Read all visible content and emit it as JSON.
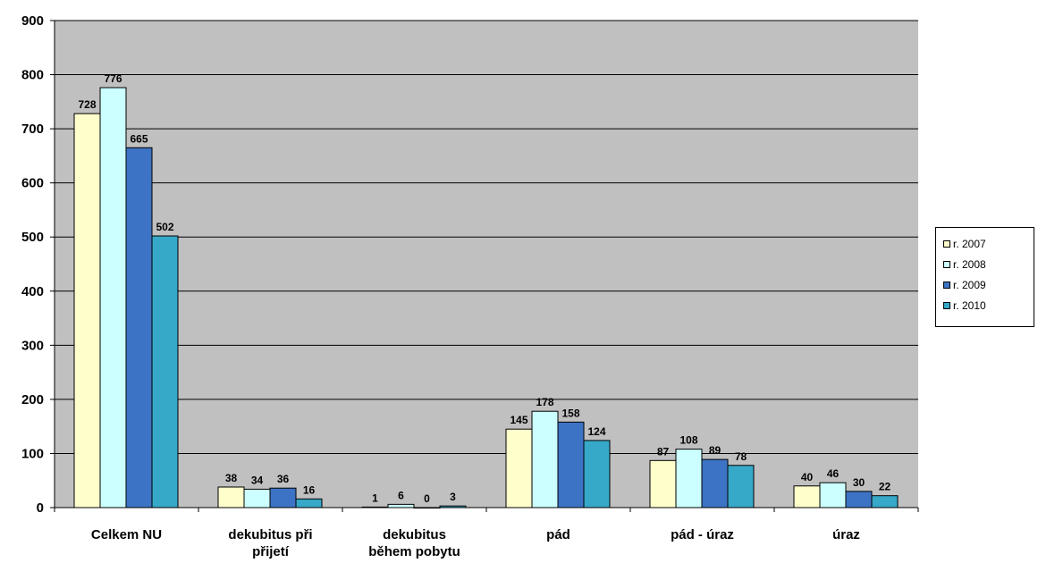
{
  "chart_data": {
    "type": "bar",
    "categories": [
      [
        "Celkem NU"
      ],
      [
        "dekubitus při",
        "přijetí"
      ],
      [
        "dekubitus",
        "během pobytu"
      ],
      [
        "pád"
      ],
      [
        "pád - úraz"
      ],
      [
        "úraz"
      ]
    ],
    "series": [
      {
        "name": "r. 2007",
        "color": "#FFFFCC",
        "values": [
          728,
          38,
          1,
          145,
          87,
          40
        ]
      },
      {
        "name": "r. 2008",
        "color": "#CCFFFF",
        "values": [
          776,
          34,
          6,
          178,
          108,
          46
        ]
      },
      {
        "name": "r. 2009",
        "color": "#3D73C4",
        "values": [
          665,
          36,
          0,
          158,
          89,
          30
        ]
      },
      {
        "name": "r. 2010",
        "color": "#36A8C8",
        "values": [
          502,
          16,
          3,
          124,
          78,
          22
        ]
      }
    ],
    "ylim": [
      0,
      900
    ],
    "yticks": [
      0,
      100,
      200,
      300,
      400,
      500,
      600,
      700,
      800,
      900
    ],
    "grid": true,
    "plot_background": "#C0C0C0",
    "legend_position": "right"
  }
}
